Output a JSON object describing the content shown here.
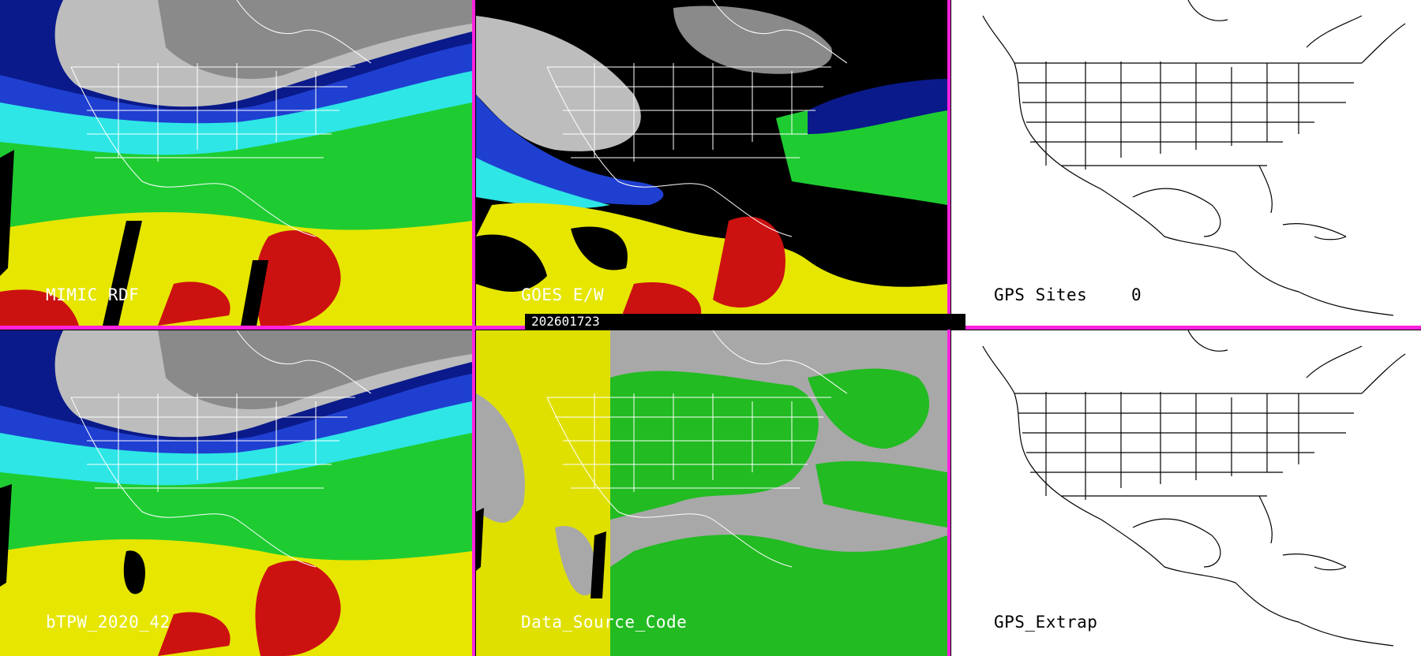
{
  "panels": {
    "mimic": {
      "label": "MIMIC RDF"
    },
    "goes": {
      "label": "GOES E/W"
    },
    "gps_sites": {
      "label": "GPS Sites",
      "count": "0"
    },
    "btpw": {
      "label": "bTPW_2020_42"
    },
    "dsc": {
      "label": "Data_Source_Code"
    },
    "gps_extrap": {
      "label": "GPS_Extrap"
    }
  },
  "timestamp": "202601723",
  "colors": {
    "separator": "#ff22dd",
    "tpw_scale": [
      "#000000",
      "#bdbdbd",
      "#0a1a8a",
      "#1f3fd0",
      "#2ee6e6",
      "#1ecc32",
      "#e6e600",
      "#cc1111"
    ],
    "data_source": [
      "#a8a8a8",
      "#e0e000",
      "#22bb22"
    ]
  }
}
